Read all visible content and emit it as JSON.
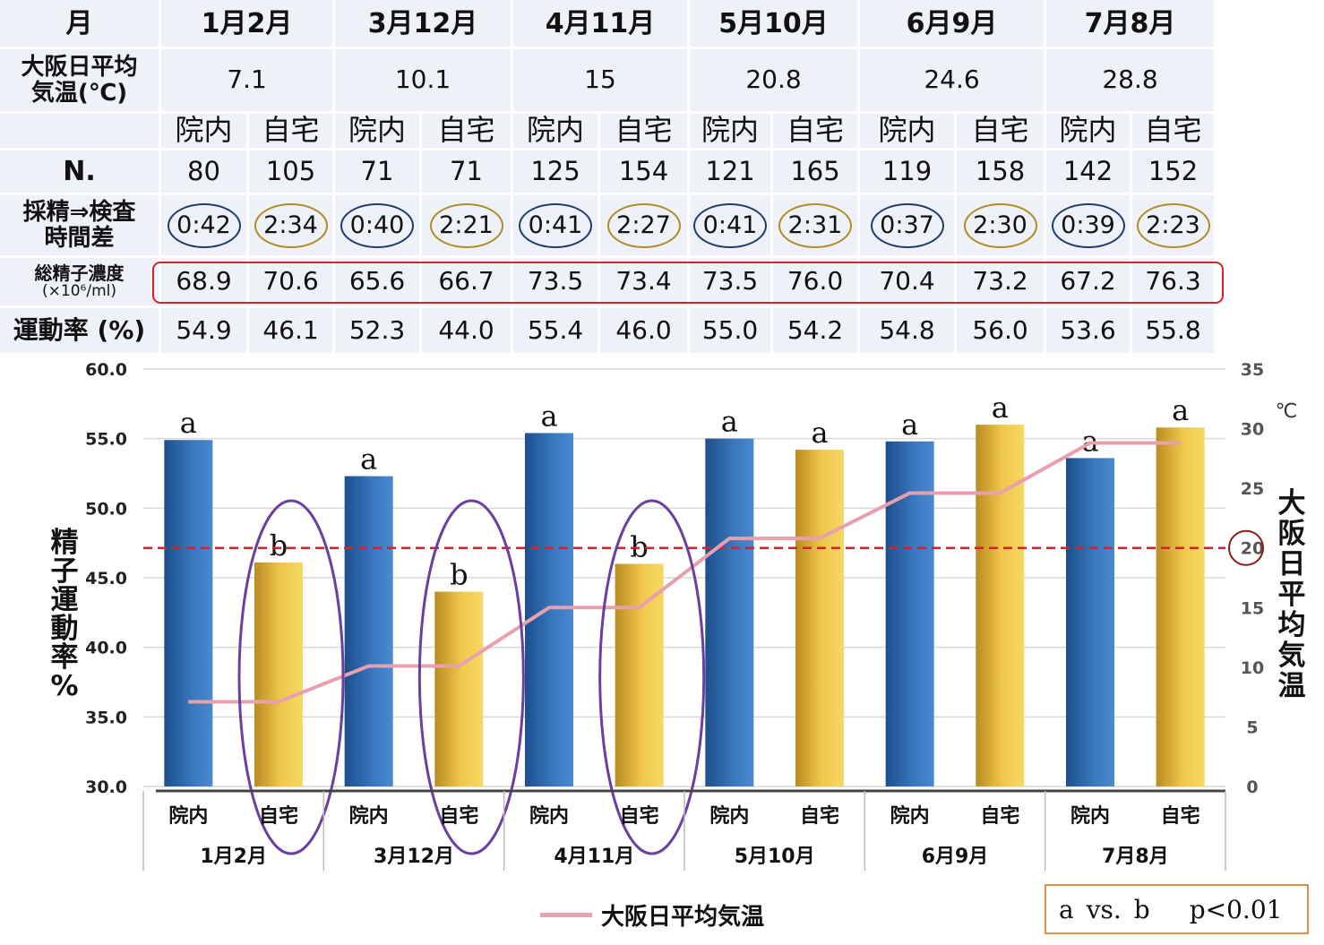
{
  "table": {
    "rows": [
      {
        "label": "月",
        "cells": [
          "1月2月",
          "3月12月",
          "4月11月",
          "5月10月",
          "6月9月",
          "7月8月"
        ],
        "span": 2
      },
      {
        "label": "大阪日平均\n気温(℃)",
        "cells": [
          "7.1",
          "10.1",
          "15",
          "20.8",
          "24.6",
          "28.8"
        ],
        "span": 2
      },
      {
        "label": "",
        "cells": [
          "院内",
          "自宅",
          "院内",
          "自宅",
          "院内",
          "自宅",
          "院内",
          "自宅",
          "院内",
          "自宅",
          "院内",
          "自宅"
        ]
      },
      {
        "label": "N.",
        "cells": [
          "80",
          "105",
          "71",
          "71",
          "125",
          "154",
          "121",
          "165",
          "119",
          "158",
          "142",
          "152"
        ]
      },
      {
        "label": "採精⇒検査\n時間差",
        "cells": [
          "0:42",
          "2:34",
          "0:40",
          "2:21",
          "0:41",
          "2:27",
          "0:41",
          "2:31",
          "0:37",
          "2:30",
          "0:39",
          "2:23"
        ],
        "oval": true
      },
      {
        "label": "総精子濃度",
        "label2": "(×10⁶/ml)",
        "cells": [
          "68.9",
          "70.6",
          "65.6",
          "66.7",
          "73.5",
          "73.4",
          "73.5",
          "76.0",
          "70.4",
          "73.2",
          "67.2",
          "76.3"
        ]
      },
      {
        "label": "運動率 (%)",
        "cells": [
          "54.9",
          "46.1",
          "52.3",
          "44.0",
          "55.4",
          "46.0",
          "55.0",
          "54.2",
          "54.8",
          "56.0",
          "53.6",
          "55.8"
        ]
      }
    ]
  },
  "chart_data": {
    "type": "bar",
    "groups": [
      "1月2月",
      "3月12月",
      "4月11月",
      "5月10月",
      "6月9月",
      "7月8月"
    ],
    "subcategories": [
      "院内",
      "自宅",
      "院内",
      "自宅",
      "院内",
      "自宅",
      "院内",
      "自宅",
      "院内",
      "自宅",
      "院内",
      "自宅"
    ],
    "bars": [
      {
        "value": 54.9,
        "label": "a",
        "type": "clinic"
      },
      {
        "value": 46.1,
        "label": "b",
        "type": "home"
      },
      {
        "value": 52.3,
        "label": "a",
        "type": "clinic"
      },
      {
        "value": 44.0,
        "label": "b",
        "type": "home"
      },
      {
        "value": 55.4,
        "label": "a",
        "type": "clinic"
      },
      {
        "value": 46.0,
        "label": "b",
        "type": "home"
      },
      {
        "value": 55.0,
        "label": "a",
        "type": "clinic"
      },
      {
        "value": 54.2,
        "label": "a",
        "type": "home"
      },
      {
        "value": 54.8,
        "label": "a",
        "type": "clinic"
      },
      {
        "value": 56.0,
        "label": "a",
        "type": "home"
      },
      {
        "value": 53.6,
        "label": "a",
        "type": "clinic"
      },
      {
        "value": 55.8,
        "label": "a",
        "type": "home"
      }
    ],
    "line": {
      "name": "大阪日平均気温",
      "values": [
        7.1,
        7.1,
        10.1,
        10.1,
        15,
        15,
        20.8,
        20.8,
        24.6,
        24.6,
        28.8,
        28.8
      ],
      "color": "#e8a0ae"
    },
    "ylabel": "精子運動率%",
    "y2label": "大阪日平均気温",
    "y2unit": "℃",
    "ylim": [
      30,
      60
    ],
    "yticks": [
      "30.0",
      "35.0",
      "40.0",
      "45.0",
      "50.0",
      "55.0",
      "60.0"
    ],
    "y2lim": [
      0,
      35
    ],
    "y2ticks": [
      "0",
      "5",
      "10",
      "15",
      "20",
      "25",
      "30",
      "35"
    ],
    "reference_line_y2": 20,
    "grid": true,
    "legend_position": "bottom",
    "colors": {
      "clinic": "#3a78c0",
      "home": "#f0c84a",
      "ellipse": "#6a3fa0",
      "refline": "#d8202a"
    }
  },
  "note": {
    "a": "a",
    "vs": "vs.",
    "b": "b",
    "p": "p<0.01"
  }
}
